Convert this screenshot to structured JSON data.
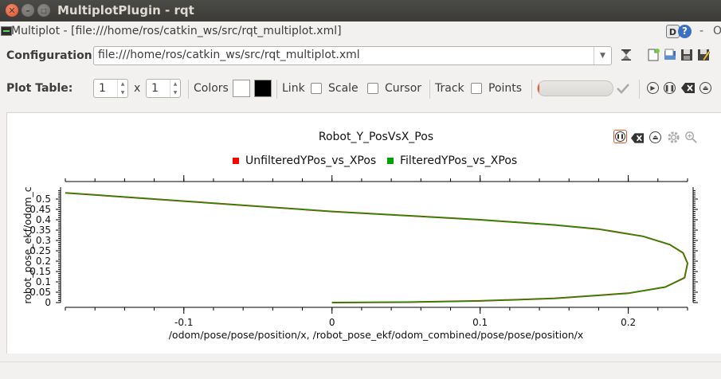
{
  "window": {
    "title": "MultiplotPlugin - rqt"
  },
  "plugin": {
    "title": "Multiplot - [file:///home/ros/catkin_ws/src/rqt_multiplot.xml]",
    "d_label": "D",
    "help_label": "?",
    "minimize_label": "-",
    "close_label": "O"
  },
  "config": {
    "label": "Configuration:",
    "value": "file:///home/ros/catkin_ws/src/rqt_multiplot.xml"
  },
  "plot_table": {
    "label": "Plot Table:",
    "rows": "1",
    "x_label": "x",
    "cols": "1",
    "colors_label": "Colors",
    "color_fg": "#ffffff",
    "color_bg": "#000000",
    "link_label": "Link",
    "scale_label": "Scale",
    "cursor_label": "Cursor",
    "track_label": "Track",
    "points_label": "Points",
    "progress": 0.02
  },
  "chart_data": {
    "type": "line",
    "title": "Robot_Y_PosVsX_Pos",
    "xlabel": "/odom/pose/pose/position/x, /robot_pose_ekf/odom_combined/pose/pose/position/x",
    "ylabel": "robot_pose_ekf/odom_c",
    "xlim": [
      -0.18,
      0.24
    ],
    "ylim": [
      0,
      0.55
    ],
    "xticks": [
      "-0.1",
      "0",
      "0.1",
      "0.2"
    ],
    "yticks": [
      "0",
      "0.05",
      "0.1",
      "0.15",
      "0.2",
      "0.25",
      "0.3",
      "0.35",
      "0.4",
      "0.45",
      "0.5"
    ],
    "legend_position": "top",
    "series": [
      {
        "name": "UnfilteredYPos_vs_XPos",
        "color": "#ff0000",
        "x": [
          0,
          0.05,
          0.1,
          0.15,
          0.2,
          0.225,
          0.238,
          0.24,
          0.237,
          0.228,
          0.21,
          0.18,
          0.15,
          0.1,
          0.05,
          0,
          -0.05,
          -0.1,
          -0.15,
          -0.18
        ],
        "y": [
          0,
          0.002,
          0.008,
          0.02,
          0.045,
          0.075,
          0.12,
          0.19,
          0.24,
          0.28,
          0.32,
          0.355,
          0.375,
          0.4,
          0.42,
          0.44,
          0.465,
          0.49,
          0.515,
          0.53
        ]
      },
      {
        "name": "FilteredYPos_vs_XPos",
        "color": "#00a000",
        "x": [
          0,
          0.05,
          0.1,
          0.15,
          0.2,
          0.225,
          0.238,
          0.24,
          0.237,
          0.228,
          0.21,
          0.18,
          0.15,
          0.1,
          0.05,
          0,
          -0.05,
          -0.1,
          -0.15,
          -0.18
        ],
        "y": [
          0,
          0.002,
          0.008,
          0.02,
          0.045,
          0.075,
          0.12,
          0.19,
          0.24,
          0.28,
          0.32,
          0.355,
          0.375,
          0.4,
          0.42,
          0.44,
          0.465,
          0.49,
          0.515,
          0.53
        ]
      }
    ]
  },
  "icons": {
    "close": "close-icon",
    "minimize": "minimize-icon",
    "maximize": "maximize-icon",
    "reload": "reload-icon",
    "new": "new-file-icon",
    "open": "open-file-icon",
    "save": "save-icon",
    "save_as": "save-as-icon",
    "confirm": "checkmark-icon",
    "play": "play-icon",
    "pause": "pause-icon",
    "clear": "clear-icon",
    "eject": "eject-icon",
    "settings": "gear-icon",
    "zoom": "zoom-icon"
  }
}
